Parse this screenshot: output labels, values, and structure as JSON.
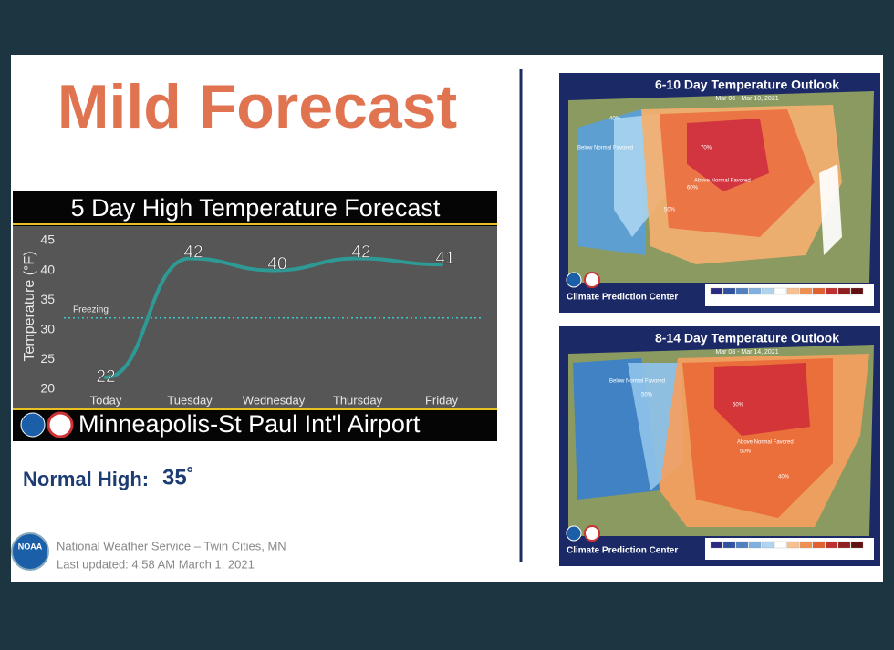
{
  "title": "Mild Forecast",
  "chart_data": {
    "type": "line",
    "title": "5 Day High Temperature Forecast",
    "y_label": "Temperature (°F)",
    "categories": [
      "Today",
      "Tuesday",
      "Wednesday",
      "Thursday",
      "Friday"
    ],
    "values": [
      22,
      42,
      40,
      42,
      41
    ],
    "color": "#2e9a95",
    "ylim": [
      20,
      45
    ],
    "yticks": [
      20,
      25,
      30,
      35,
      40,
      45
    ],
    "grid": false,
    "annotations": [
      {
        "label": "Freezing",
        "value": 32
      }
    ]
  },
  "location": "Minneapolis-St Paul Int'l Airport",
  "normal_high": {
    "label": "Normal High:",
    "value": "35˚"
  },
  "footer": {
    "logo": "NOAA",
    "lines": [
      "National Weather Service – Twin Cities, MN",
      "Last updated: 4:58 AM March 1, 2021"
    ]
  },
  "maps": [
    {
      "title": "6-10 Day Temperature Outlook",
      "dates": "Mar 06 - Mar 10, 2021",
      "source": "Climate Prediction Center",
      "labels": [
        "Below Normal Favored",
        "Above Normal Favored",
        "70%",
        "60%",
        "50%",
        "40%"
      ]
    },
    {
      "title": "8-14 Day Temperature Outlook",
      "dates": "Mar 08 - Mar 14, 2021",
      "source": "Climate Prediction Center",
      "labels": [
        "Below Normal Favored",
        "Above Normal Favored",
        "60%",
        "50%",
        "40%",
        "50%"
      ]
    }
  ]
}
